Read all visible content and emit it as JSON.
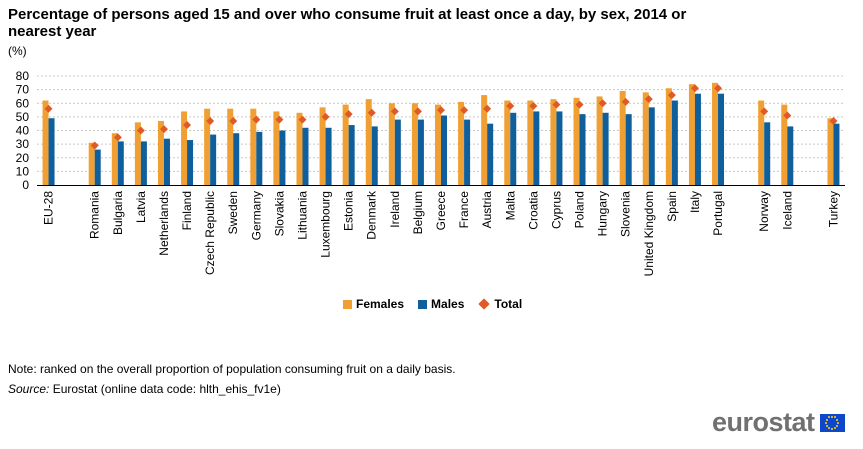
{
  "title": "Percentage of persons aged 15 and over who consume fruit at least once a day, by sex, 2014 or nearest year",
  "unit": "(%)",
  "note": "Note: ranked on the overall proportion of population consuming fruit on a daily basis.",
  "source": {
    "label": "Source:",
    "text": "Eurostat (online data code: hlth_ehis_fv1e)"
  },
  "logo": {
    "text": "eurostat",
    "icon": "eu-flag-icon"
  },
  "legend": [
    {
      "label": "Females",
      "color": "#f0a032",
      "shape": "square"
    },
    {
      "label": "Males",
      "color": "#0e5f9c",
      "shape": "square"
    },
    {
      "label": "Total",
      "color": "#e05a28",
      "shape": "diamond"
    }
  ],
  "chart_data": {
    "type": "bar",
    "title": "Percentage of persons aged 15 and over who consume fruit at least once a day, by sex, 2014 or nearest year",
    "ylabel": "(%)",
    "ylim": [
      0,
      80
    ],
    "yticks": [
      0,
      10,
      20,
      30,
      40,
      50,
      60,
      70,
      80
    ],
    "grid": true,
    "legend_position": "bottom",
    "categories": [
      "EU-28",
      "",
      "Romania",
      "Bulgaria",
      "Latvia",
      "Netherlands",
      "Finland",
      "Czech Republic",
      "Sweden",
      "Germany",
      "Slovakia",
      "Lithuania",
      "Luxembourg",
      "Estonia",
      "Denmark",
      "Ireland",
      "Belgium",
      "Greece",
      "France",
      "Austria",
      "Malta",
      "Croatia",
      "Cyprus",
      "Poland",
      "Hungary",
      "Slovenia",
      "United Kingdom",
      "Spain",
      "Italy",
      "Portugal",
      "",
      "Norway",
      "Iceland",
      "",
      "Turkey"
    ],
    "series": [
      {
        "name": "Females",
        "type": "bar",
        "color": "#f0a032",
        "values": [
          62,
          null,
          31,
          38,
          46,
          47,
          54,
          56,
          56,
          56,
          54,
          53,
          57,
          59,
          63,
          60,
          60,
          59,
          61,
          66,
          62,
          62,
          63,
          64,
          65,
          69,
          68,
          71,
          74,
          75,
          null,
          62,
          59,
          null,
          49
        ]
      },
      {
        "name": "Males",
        "type": "bar",
        "color": "#0e5f9c",
        "values": [
          49,
          null,
          26,
          32,
          32,
          34,
          33,
          37,
          38,
          39,
          40,
          42,
          42,
          44,
          43,
          48,
          48,
          51,
          48,
          45,
          53,
          54,
          54,
          52,
          53,
          52,
          57,
          62,
          67,
          67,
          null,
          46,
          43,
          null,
          45
        ]
      },
      {
        "name": "Total",
        "type": "marker",
        "color": "#e05a28",
        "values": [
          56,
          null,
          29,
          35,
          40,
          41,
          44,
          47,
          47,
          48,
          48,
          48,
          50,
          52,
          53,
          54,
          54,
          55,
          55,
          56,
          58,
          58,
          59,
          59,
          60,
          61,
          63,
          66,
          71,
          71,
          null,
          54,
          51,
          null,
          47
        ]
      }
    ]
  }
}
